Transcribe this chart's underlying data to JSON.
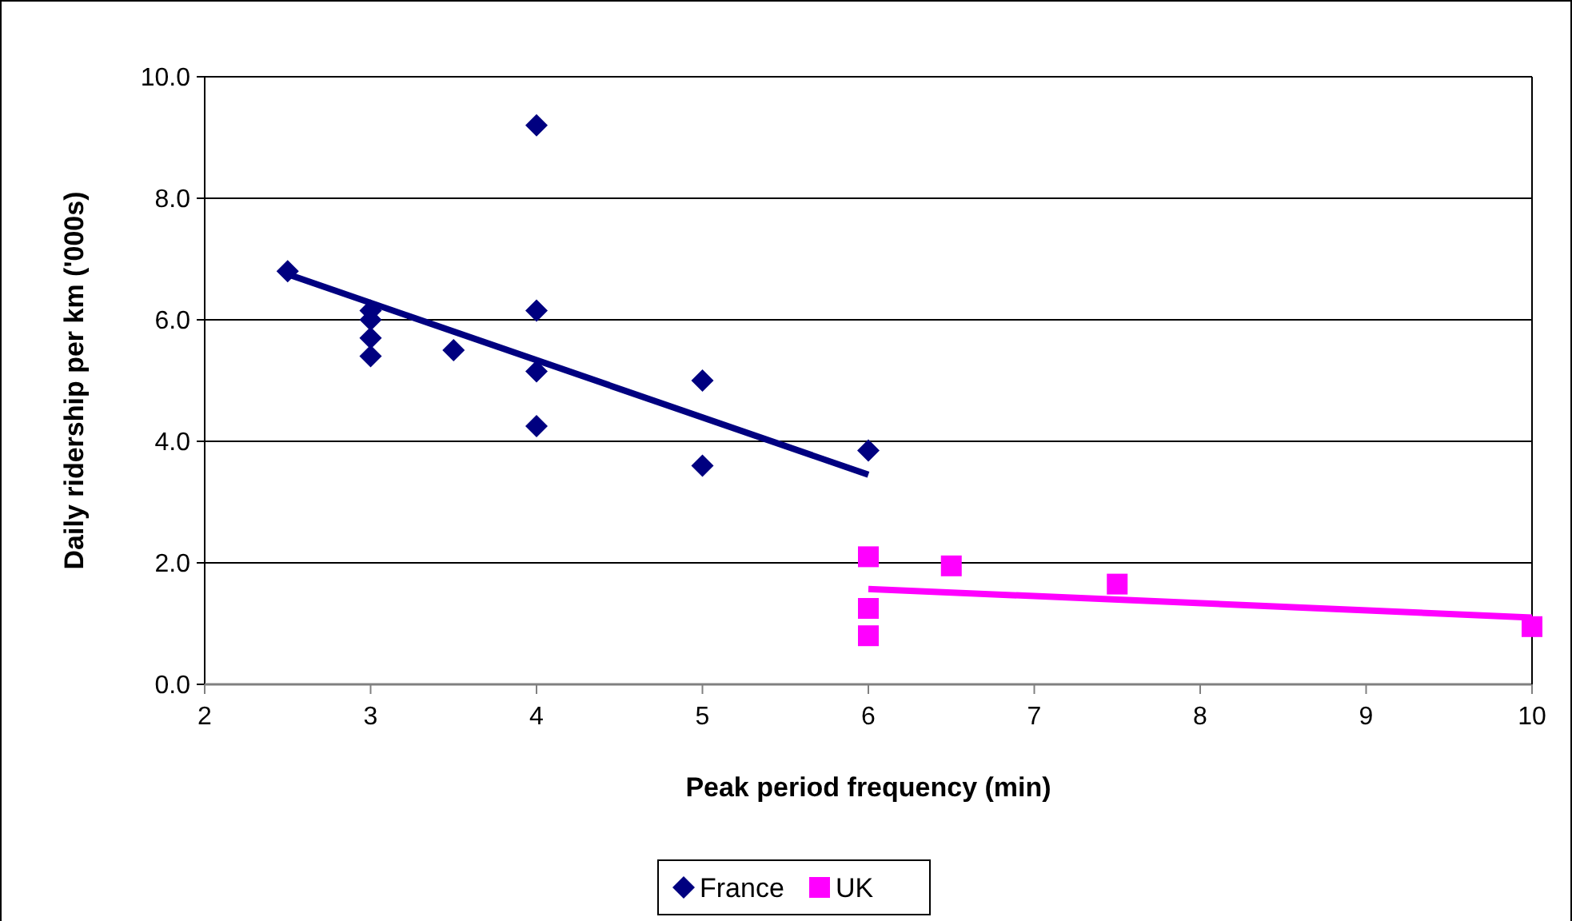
{
  "chart_data": {
    "type": "scatter",
    "xlabel": "Peak period frequency (min)",
    "ylabel": "Daily ridership per km ('000s)",
    "xlim": [
      2,
      10
    ],
    "xticks": [
      2,
      3,
      4,
      5,
      6,
      7,
      8,
      9,
      10
    ],
    "ylim": [
      0,
      10
    ],
    "yticks": [
      {
        "value": 0,
        "label": "0.0"
      },
      {
        "value": 2,
        "label": "2.0"
      },
      {
        "value": 4,
        "label": "4.0"
      },
      {
        "value": 6,
        "label": "6.0"
      },
      {
        "value": 8,
        "label": "8.0"
      },
      {
        "value": 10,
        "label": "10.0"
      }
    ],
    "grid": "y",
    "legend": "bottom",
    "series": [
      {
        "name": "France",
        "marker": "diamond",
        "color": "#000080",
        "x": [
          2.5,
          3,
          3,
          3,
          3,
          3.5,
          4,
          4,
          4,
          4,
          5,
          5,
          6
        ],
        "values": [
          6.8,
          6.15,
          6.0,
          5.7,
          5.4,
          5.5,
          9.2,
          6.15,
          5.15,
          4.25,
          5.0,
          3.6,
          3.85
        ]
      },
      {
        "name": "UK",
        "marker": "square",
        "color": "#ff00ff",
        "x": [
          6,
          6,
          6,
          6.5,
          7.5,
          10
        ],
        "values": [
          2.1,
          1.25,
          0.8,
          1.95,
          1.65,
          0.95
        ]
      },
      {
        "type": "line",
        "color": "#000080",
        "x": [
          2.5,
          6
        ],
        "values": [
          6.75,
          3.45
        ]
      },
      {
        "type": "line",
        "color": "#ff00ff",
        "x": [
          6,
          10
        ],
        "values": [
          1.57,
          1.1
        ]
      }
    ]
  }
}
